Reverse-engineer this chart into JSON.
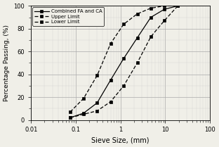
{
  "combined_x": [
    0.075,
    0.15,
    0.3,
    0.6,
    1.18,
    2.36,
    4.75,
    9.5,
    19.0
  ],
  "combined_y": [
    2,
    6,
    15,
    35,
    54,
    72,
    90,
    97,
    100
  ],
  "upper_x": [
    0.075,
    0.15,
    0.3,
    0.6,
    1.18,
    2.36,
    4.75,
    9.5,
    19.0
  ],
  "upper_y": [
    7,
    19,
    39,
    67,
    84,
    93,
    98,
    100,
    100
  ],
  "lower_x": [
    0.075,
    0.15,
    0.3,
    0.6,
    1.18,
    2.36,
    4.75,
    9.5,
    19.0
  ],
  "lower_y": [
    2,
    5,
    8,
    16,
    30,
    50,
    73,
    87,
    100
  ],
  "xlabel": "Sieve Size, (mm)",
  "ylabel": "Percentage Passing, (%)",
  "xlim": [
    0.01,
    100
  ],
  "ylim": [
    0,
    100
  ],
  "yticks": [
    0,
    20,
    40,
    60,
    80,
    100
  ],
  "xticks": [
    0.01,
    0.1,
    1,
    10,
    100
  ],
  "xtick_labels": [
    "0.01",
    "0.1",
    "1",
    "10",
    "100"
  ],
  "legend_labels": [
    "Combined FA and CA",
    "Upper Limit",
    "Lower Limit"
  ],
  "bg_color": "#f0efe8",
  "grid_major_color": "#aaaaaa",
  "grid_minor_color": "#cccccc"
}
